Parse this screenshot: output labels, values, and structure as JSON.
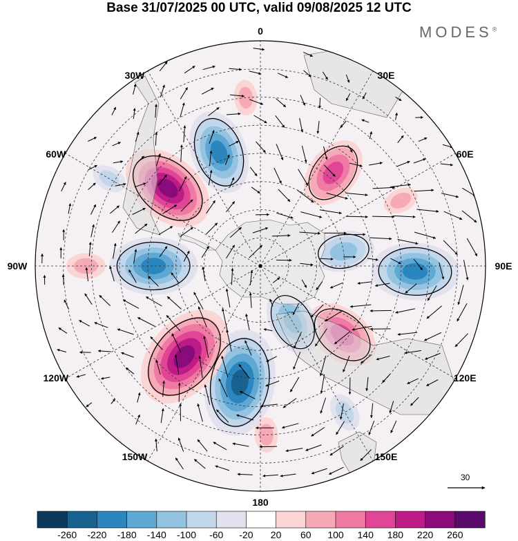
{
  "title": "Base 31/07/2025 00 UTC, valid 09/08/2025 12 UTC",
  "brand": "MODES",
  "brand_mark": "®",
  "chart_data": {
    "type": "polar-stereographic-map",
    "projection": "South polar stereographic, centred on South Pole",
    "variable": "Geopotential height anomaly with wind vectors",
    "longitude_labels": [
      "0",
      "30E",
      "60E",
      "90E",
      "120E",
      "150E",
      "180",
      "150W",
      "120W",
      "90W",
      "60W",
      "30W"
    ],
    "wind_reference": {
      "value": "30",
      "direction": "east"
    },
    "colorbar": {
      "colors": [
        "#0d3a5c",
        "#17628f",
        "#2a86bd",
        "#5fa8d4",
        "#94c3e2",
        "#c1d6ea",
        "#e2e2ef",
        "#ffffff",
        "#fbd4d4",
        "#f6aab7",
        "#ef7aa4",
        "#e04695",
        "#bd1b86",
        "#8b0a7c",
        "#5b0b6c"
      ],
      "tick_labels": [
        "-260",
        "-220",
        "-180",
        "-140",
        "-100",
        "-60",
        "-20",
        "20",
        "60",
        "100",
        "140",
        "180",
        "220",
        "260"
      ]
    },
    "anomalies": [
      {
        "label": "negative",
        "lon": 340,
        "lat": -47,
        "value": -190
      },
      {
        "label": "positive",
        "lon": 38,
        "lat": -48,
        "value": 160
      },
      {
        "label": "negative",
        "lon": 80,
        "lat": -60,
        "value": -130
      },
      {
        "label": "negative",
        "lon": 92,
        "lat": -35,
        "value": -200
      },
      {
        "label": "positive",
        "lon": 130,
        "lat": -52,
        "value": 170
      },
      {
        "label": "negative",
        "lon": 150,
        "lat": -67,
        "value": -150
      },
      {
        "label": "negative",
        "lon": 190,
        "lat": -48,
        "value": -250
      },
      {
        "label": "positive",
        "lon": 220,
        "lat": -48,
        "value": 250
      },
      {
        "label": "negative",
        "lon": 270,
        "lat": -52,
        "value": -200
      },
      {
        "label": "positive",
        "lon": 310,
        "lat": -47,
        "value": 220
      },
      {
        "label": "negative",
        "lon": 300,
        "lat": -28,
        "value": -60
      },
      {
        "label": "positive",
        "lon": 270,
        "lat": -28,
        "value": 70
      },
      {
        "label": "positive",
        "lon": 355,
        "lat": -30,
        "value": 60
      },
      {
        "label": "positive",
        "lon": 65,
        "lat": -35,
        "value": 60
      },
      {
        "label": "positive",
        "lon": 178,
        "lat": -30,
        "value": 60
      },
      {
        "label": "negative",
        "lon": 150,
        "lat": -30,
        "value": -70
      }
    ]
  }
}
